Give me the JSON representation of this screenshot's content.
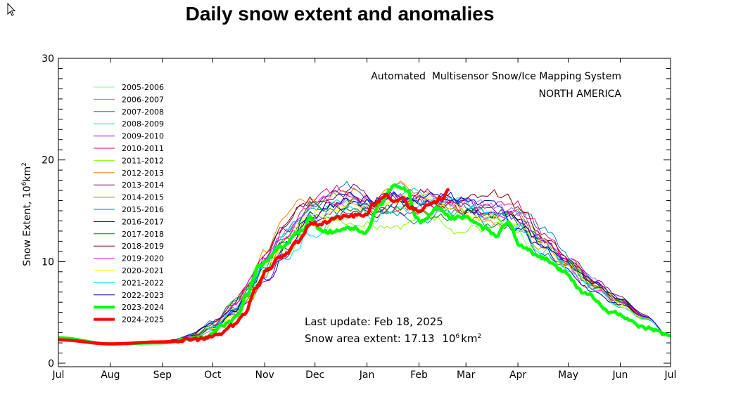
{
  "page": {
    "title": "Daily snow extent and anomalies"
  },
  "chart_data": {
    "type": "line",
    "title": "Daily snow extent and anomalies",
    "subtitle": "Automated  Multisensor Snow/Ice Mapping System",
    "region": "NORTH AMERICA",
    "xlabel": "",
    "ylabel": "Snow Extent, 10⁶km²",
    "x_unit": "day of season (from Jul 1)",
    "xlim": [
      0,
      365
    ],
    "ylim": [
      0,
      30
    ],
    "yticks": [
      0,
      10,
      20,
      30
    ],
    "yticks_labels": [
      "0",
      "10",
      "20",
      "30"
    ],
    "xticks": [
      0,
      31,
      62,
      92,
      123,
      153,
      184,
      215,
      243,
      274,
      304,
      335,
      365
    ],
    "xtick_labels": [
      "Jul",
      "Aug",
      "Sep",
      "Oct",
      "Nov",
      "Dec",
      "Jan",
      "Feb",
      "Mar",
      "Apr",
      "May",
      "Jun",
      "Jul"
    ],
    "grid": false,
    "legend_position": "top-left",
    "annotations": {
      "last_update": "Last update: Feb 18, 2025",
      "extent_prefix": "Snow area extent: 17.13",
      "extent_unit_base": "10",
      "extent_unit_exp": "6",
      "extent_unit_km": "km",
      "extent_unit_sq": "2"
    },
    "climatology_base": {
      "x": [
        0,
        31,
        61,
        80,
        92,
        105,
        115,
        123,
        135,
        150,
        165,
        184,
        200,
        215,
        230,
        243,
        260,
        274,
        290,
        304,
        320,
        335,
        350,
        365
      ],
      "y": [
        2.4,
        1.9,
        2.1,
        2.6,
        3.6,
        5.3,
        7.3,
        9.5,
        12.0,
        14.3,
        15.5,
        16.0,
        16.3,
        16.1,
        15.7,
        15.2,
        14.4,
        13.6,
        11.6,
        9.5,
        7.5,
        6.0,
        4.5,
        2.6
      ]
    },
    "series": [
      {
        "name": "2005-2006",
        "color": "#80ff80",
        "width": "thin",
        "offset": -0.4,
        "noise_seed": 1
      },
      {
        "name": "2006-2007",
        "color": "#8080ff",
        "width": "thin",
        "offset": 0.3,
        "noise_seed": 2
      },
      {
        "name": "2007-2008",
        "color": "#0080c0",
        "width": "thin",
        "offset": 0.5,
        "noise_seed": 3
      },
      {
        "name": "2008-2009",
        "color": "#00e0a0",
        "width": "thin",
        "offset": 0.2,
        "noise_seed": 4
      },
      {
        "name": "2009-2010",
        "color": "#8000ff",
        "width": "thin",
        "offset": -0.3,
        "noise_seed": 5
      },
      {
        "name": "2010-2011",
        "color": "#e00080",
        "width": "thin",
        "offset": 0.6,
        "noise_seed": 6
      },
      {
        "name": "2011-2012",
        "color": "#80ff00",
        "width": "thin",
        "offset": -0.9,
        "noise_seed": 7
      },
      {
        "name": "2012-2013",
        "color": "#ff8000",
        "width": "thin",
        "offset": 0.4,
        "noise_seed": 8
      },
      {
        "name": "2013-2014",
        "color": "#800080",
        "width": "thin",
        "offset": 0.8,
        "noise_seed": 9
      },
      {
        "name": "2014-2015",
        "color": "#808000",
        "width": "thin",
        "offset": 0.1,
        "noise_seed": 10
      },
      {
        "name": "2015-2016",
        "color": "#008080",
        "width": "thin",
        "offset": -0.2,
        "noise_seed": 11
      },
      {
        "name": "2016-2017",
        "color": "#000080",
        "width": "thin",
        "offset": 0.0,
        "noise_seed": 12
      },
      {
        "name": "2017-2018",
        "color": "#008000",
        "width": "thin",
        "offset": 0.3,
        "noise_seed": 13
      },
      {
        "name": "2018-2019",
        "color": "#800000",
        "width": "thin",
        "offset": 0.7,
        "noise_seed": 14
      },
      {
        "name": "2019-2020",
        "color": "#ff00ff",
        "width": "thin",
        "offset": 0.2,
        "noise_seed": 15
      },
      {
        "name": "2020-2021",
        "color": "#ffff00",
        "width": "thin",
        "offset": -0.1,
        "noise_seed": 16
      },
      {
        "name": "2021-2022",
        "color": "#00e0ff",
        "width": "thin",
        "offset": -0.5,
        "noise_seed": 17
      },
      {
        "name": "2022-2023",
        "color": "#0000c0",
        "width": "thin",
        "offset": 0.4,
        "noise_seed": 18
      },
      {
        "name": "2023-2024",
        "color": "#00ff00",
        "width": "thick",
        "x": [
          0,
          31,
          61,
          87,
          99,
          107,
          112,
          120,
          133,
          146,
          150,
          158,
          176,
          183,
          192,
          200,
          208,
          213,
          216,
          227,
          234,
          242,
          254,
          261,
          268,
          276,
          289,
          301,
          313,
          330,
          351,
          365
        ],
        "y": [
          2.5,
          1.9,
          2.0,
          2.5,
          3.8,
          4.6,
          6.7,
          9.7,
          11.5,
          13.1,
          14.3,
          12.9,
          13.3,
          12.9,
          15.7,
          17.4,
          17.1,
          14.3,
          13.9,
          15.3,
          14.3,
          14.4,
          13.3,
          12.6,
          13.8,
          11.5,
          10.3,
          9.1,
          7.0,
          5.0,
          3.4,
          2.7
        ]
      },
      {
        "name": "2024-2025",
        "color": "#ff0000",
        "width": "thick",
        "x": [
          0,
          31,
          61,
          87,
          95,
          105,
          111,
          118,
          125,
          133,
          143,
          150,
          157,
          165,
          175,
          183,
          188,
          195,
          200,
          205,
          210,
          215,
          222,
          228,
          233
        ],
        "y": [
          2.3,
          1.9,
          2.1,
          2.4,
          2.8,
          3.8,
          4.9,
          7.5,
          9.3,
          10.5,
          11.9,
          13.7,
          13.7,
          14.3,
          14.5,
          14.6,
          15.6,
          16.5,
          15.8,
          16.3,
          15.3,
          15.1,
          15.6,
          16.2,
          17.13
        ]
      }
    ]
  }
}
